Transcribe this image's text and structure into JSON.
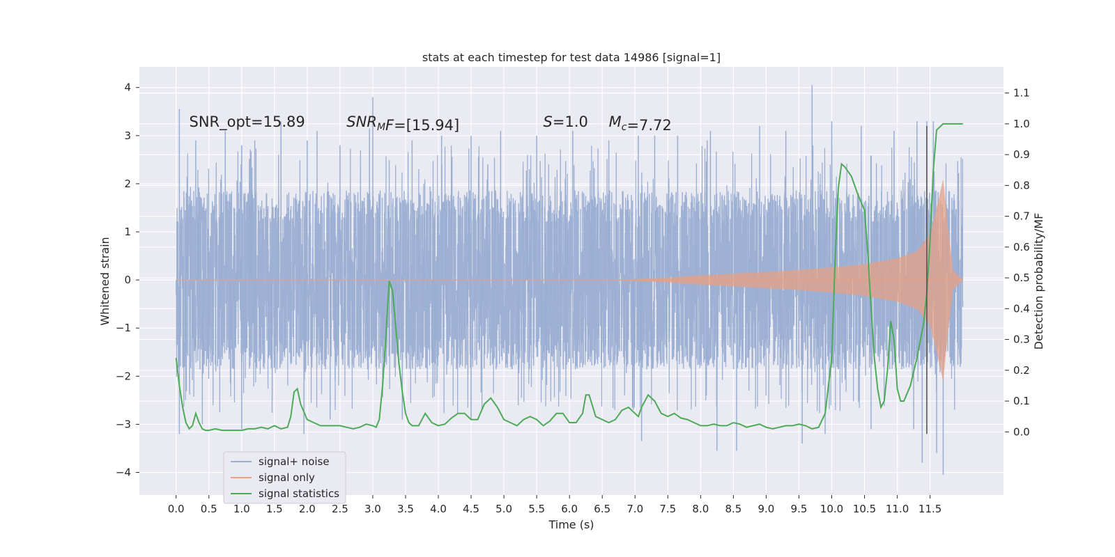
{
  "chart_data": {
    "type": "line",
    "title": "stats at each timestep for test data 14986 [signal=1]",
    "xlabel": "Time (s)",
    "ylabel": "Whitened strain",
    "y2label": "Detection probability/MF",
    "xlim": [
      -0.56,
      12.62
    ],
    "ylim": [
      -4.47,
      4.43
    ],
    "y2lim": [
      -0.205,
      1.185
    ],
    "x_ticks": [
      0.0,
      0.5,
      1.0,
      1.5,
      2.0,
      2.5,
      3.0,
      3.5,
      4.0,
      4.5,
      5.0,
      5.5,
      6.0,
      6.5,
      7.0,
      7.5,
      8.0,
      8.5,
      9.0,
      9.5,
      10.0,
      10.5,
      11.0,
      11.5
    ],
    "x_tick_labels": [
      "0.0",
      "0.5",
      "1.0",
      "1.5",
      "2.0",
      "2.5",
      "3.0",
      "3.5",
      "4.0",
      "4.5",
      "5.0",
      "5.5",
      "6.0",
      "6.5",
      "7.0",
      "7.5",
      "8.0",
      "8.5",
      "9.0",
      "9.5",
      "10.0",
      "10.5",
      "11.0",
      "11.5"
    ],
    "y_ticks": [
      4,
      3,
      2,
      1,
      0,
      -1,
      -2,
      -3,
      -4
    ],
    "y_tick_labels": [
      "4",
      "3",
      "2",
      "1",
      "0",
      "−1",
      "−2",
      "−3",
      "−4"
    ],
    "y2_ticks": [
      1.1,
      1.0,
      0.9,
      0.8,
      0.7,
      0.6,
      0.5,
      0.4,
      0.3,
      0.2,
      0.1,
      0.0
    ],
    "y2_tick_labels": [
      "1.1",
      "1.0",
      "0.9",
      "0.8",
      "0.7",
      "0.6",
      "0.5",
      "0.4",
      "0.3",
      "0.2",
      "0.1",
      "0.0"
    ],
    "grid": true,
    "legend_position": "lower-left",
    "annotations": [
      {
        "segments": [
          {
            "t": "SNR_opt=15.89"
          }
        ],
        "x": 0.2,
        "y": 3.3
      },
      {
        "segments": [
          {
            "t": "SNR",
            "italic": true
          },
          {
            "t": "M",
            "italic": true,
            "sub": true
          },
          {
            "t": "F",
            "italic": true
          },
          {
            "t": "=[15.94]"
          }
        ],
        "x": 2.6,
        "y": 3.3
      },
      {
        "segments": [
          {
            "t": "S",
            "italic": true
          },
          {
            "t": "=1.0"
          }
        ],
        "x": 5.6,
        "y": 3.3
      },
      {
        "segments": [
          {
            "t": "M",
            "italic": true
          },
          {
            "t": "c",
            "italic": true,
            "sub": true
          },
          {
            "t": "=7.72"
          }
        ],
        "x": 6.6,
        "y": 3.3
      }
    ],
    "marker_line": {
      "x": 11.45,
      "y_from": -3.2,
      "y_to": 3.2
    },
    "series": [
      {
        "name": "signal+ noise",
        "axis": "left",
        "color": "#9aaed2",
        "note_rendering": "dense noise trace; typical band about +/-1.8 with spikes",
        "t_range": [
          0.0,
          12.0
        ],
        "samples": 4200,
        "band_amplitude": 1.85,
        "spike_peaks_upper": [
          [
            0.05,
            3.55
          ],
          [
            0.3,
            2.9
          ],
          [
            0.75,
            3.1
          ],
          [
            1.0,
            2.8
          ],
          [
            1.2,
            2.9
          ],
          [
            1.6,
            3.3
          ],
          [
            2.0,
            2.9
          ],
          [
            2.15,
            3.1
          ],
          [
            2.5,
            2.8
          ],
          [
            2.95,
            3.15
          ],
          [
            3.0,
            3.8
          ],
          [
            3.6,
            2.9
          ],
          [
            4.05,
            3.0
          ],
          [
            4.5,
            3.0
          ],
          [
            4.95,
            3.1
          ],
          [
            5.5,
            3.0
          ],
          [
            6.05,
            3.1
          ],
          [
            6.6,
            2.9
          ],
          [
            7.05,
            3.0
          ],
          [
            7.3,
            3.0
          ],
          [
            7.65,
            3.0
          ],
          [
            8.1,
            2.9
          ],
          [
            8.15,
            3.1
          ],
          [
            8.9,
            3.2
          ],
          [
            9.3,
            3.1
          ],
          [
            9.7,
            4.05
          ],
          [
            10.0,
            3.3
          ],
          [
            10.45,
            3.2
          ],
          [
            10.95,
            3.1
          ],
          [
            11.3,
            3.3
          ],
          [
            11.45,
            3.3
          ],
          [
            11.55,
            3.3
          ]
        ],
        "spike_peaks_lower": [
          [
            0.05,
            -3.2
          ],
          [
            0.4,
            -3.0
          ],
          [
            1.0,
            -3.1
          ],
          [
            1.95,
            -3.2
          ],
          [
            2.35,
            -2.9
          ],
          [
            3.45,
            -2.9
          ],
          [
            4.5,
            -2.9
          ],
          [
            7.1,
            -3.35
          ],
          [
            8.25,
            -3.55
          ],
          [
            8.55,
            -3.55
          ],
          [
            9.55,
            -3.4
          ],
          [
            9.9,
            -3.2
          ],
          [
            10.6,
            -3.1
          ],
          [
            11.25,
            -3.1
          ],
          [
            11.38,
            -3.8
          ],
          [
            11.6,
            -3.6
          ],
          [
            11.7,
            -4.05
          ]
        ]
      },
      {
        "name": "signal only",
        "axis": "left",
        "color": "#e6a085",
        "note_rendering": "chirp envelope amplitude vs time",
        "t_range": [
          0.0,
          12.0
        ],
        "envelope": [
          [
            0.0,
            0.0
          ],
          [
            6.5,
            0.0
          ],
          [
            7.0,
            0.02
          ],
          [
            7.5,
            0.05
          ],
          [
            8.0,
            0.1
          ],
          [
            8.5,
            0.13
          ],
          [
            9.0,
            0.17
          ],
          [
            9.5,
            0.21
          ],
          [
            10.0,
            0.26
          ],
          [
            10.5,
            0.33
          ],
          [
            11.0,
            0.45
          ],
          [
            11.3,
            0.6
          ],
          [
            11.5,
            0.95
          ],
          [
            11.6,
            1.5
          ],
          [
            11.7,
            2.1
          ],
          [
            11.78,
            1.0
          ],
          [
            11.85,
            0.2
          ],
          [
            12.0,
            0.0
          ]
        ]
      },
      {
        "name": "signal statistics",
        "axis": "right",
        "color": "#4daa57",
        "x": [
          0.0,
          0.05,
          0.1,
          0.15,
          0.2,
          0.25,
          0.3,
          0.35,
          0.4,
          0.45,
          0.5,
          0.6,
          0.7,
          0.8,
          0.9,
          1.0,
          1.1,
          1.2,
          1.3,
          1.4,
          1.5,
          1.6,
          1.7,
          1.75,
          1.8,
          1.85,
          1.9,
          2.0,
          2.1,
          2.2,
          2.3,
          2.4,
          2.5,
          2.6,
          2.7,
          2.8,
          2.9,
          3.0,
          3.05,
          3.1,
          3.15,
          3.2,
          3.25,
          3.3,
          3.35,
          3.4,
          3.45,
          3.5,
          3.55,
          3.6,
          3.65,
          3.7,
          3.8,
          3.9,
          4.0,
          4.1,
          4.2,
          4.3,
          4.4,
          4.5,
          4.6,
          4.7,
          4.8,
          4.9,
          5.0,
          5.1,
          5.2,
          5.3,
          5.4,
          5.5,
          5.6,
          5.7,
          5.8,
          5.9,
          6.0,
          6.1,
          6.2,
          6.25,
          6.3,
          6.4,
          6.5,
          6.6,
          6.7,
          6.8,
          6.9,
          7.0,
          7.05,
          7.1,
          7.2,
          7.3,
          7.4,
          7.5,
          7.6,
          7.7,
          7.8,
          7.9,
          8.0,
          8.1,
          8.2,
          8.3,
          8.4,
          8.5,
          8.6,
          8.7,
          8.8,
          8.9,
          9.0,
          9.1,
          9.2,
          9.3,
          9.4,
          9.5,
          9.6,
          9.7,
          9.8,
          9.9,
          10.0,
          10.05,
          10.1,
          10.15,
          10.2,
          10.3,
          10.4,
          10.5,
          10.55,
          10.6,
          10.65,
          10.7,
          10.75,
          10.8,
          10.85,
          10.9,
          10.95,
          11.0,
          11.05,
          11.1,
          11.2,
          11.3,
          11.4,
          11.45,
          11.5,
          11.55,
          11.6,
          11.7,
          11.8,
          11.9,
          12.0
        ],
        "y": [
          0.24,
          0.15,
          0.08,
          0.03,
          0.01,
          0.02,
          0.06,
          0.03,
          0.01,
          0.005,
          0.005,
          0.01,
          0.005,
          0.005,
          0.005,
          0.005,
          0.01,
          0.01,
          0.015,
          0.01,
          0.02,
          0.01,
          0.015,
          0.05,
          0.13,
          0.14,
          0.09,
          0.04,
          0.03,
          0.02,
          0.02,
          0.02,
          0.02,
          0.015,
          0.01,
          0.015,
          0.025,
          0.02,
          0.015,
          0.04,
          0.15,
          0.31,
          0.49,
          0.46,
          0.34,
          0.22,
          0.13,
          0.06,
          0.03,
          0.02,
          0.02,
          0.02,
          0.06,
          0.03,
          0.02,
          0.025,
          0.045,
          0.06,
          0.06,
          0.04,
          0.04,
          0.09,
          0.11,
          0.08,
          0.04,
          0.03,
          0.02,
          0.04,
          0.05,
          0.04,
          0.02,
          0.035,
          0.06,
          0.06,
          0.03,
          0.03,
          0.06,
          0.12,
          0.12,
          0.05,
          0.04,
          0.03,
          0.04,
          0.07,
          0.08,
          0.06,
          0.05,
          0.08,
          0.12,
          0.1,
          0.06,
          0.05,
          0.06,
          0.045,
          0.04,
          0.03,
          0.02,
          0.02,
          0.025,
          0.02,
          0.02,
          0.03,
          0.025,
          0.015,
          0.02,
          0.025,
          0.015,
          0.01,
          0.015,
          0.02,
          0.02,
          0.025,
          0.02,
          0.01,
          0.015,
          0.06,
          0.24,
          0.55,
          0.79,
          0.87,
          0.86,
          0.83,
          0.77,
          0.72,
          0.58,
          0.4,
          0.24,
          0.14,
          0.08,
          0.1,
          0.2,
          0.36,
          0.3,
          0.14,
          0.1,
          0.1,
          0.15,
          0.24,
          0.35,
          0.45,
          0.62,
          0.85,
          0.98,
          1.0,
          1.0,
          1.0,
          1.0
        ]
      }
    ]
  }
}
